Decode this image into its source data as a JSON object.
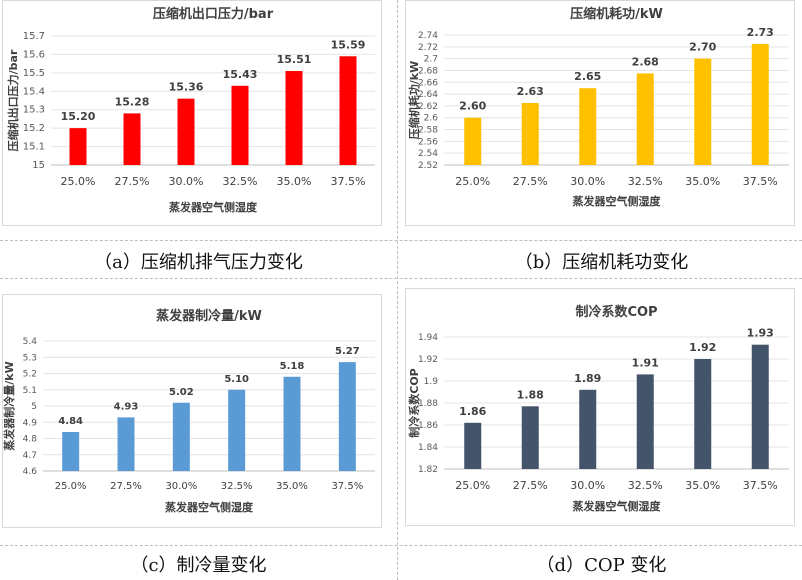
{
  "captions": {
    "a": "（a）压缩机排气压力变化",
    "b": "（b）压缩机耗功变化",
    "c": "（c）制冷量变化",
    "d": "（d）COP 变化"
  },
  "chart_data": [
    {
      "type": "bar",
      "title": "压缩机出口压力/bar",
      "xlabel": "蒸发器空气侧湿度",
      "ylabel": "压缩机出口压力/bar",
      "categories": [
        "25.0%",
        "27.5%",
        "30.0%",
        "32.5%",
        "35.0%",
        "37.5%"
      ],
      "values": [
        15.2,
        15.28,
        15.36,
        15.43,
        15.51,
        15.59
      ],
      "value_labels": [
        "15.20",
        "15.28",
        "15.36",
        "15.43",
        "15.51",
        "15.59"
      ],
      "ylim": [
        15,
        15.7
      ],
      "yticks": [
        "15",
        "15.1",
        "15.2",
        "15.3",
        "15.4",
        "15.5",
        "15.6",
        "15.7"
      ],
      "color": "#FF0000",
      "grid": true
    },
    {
      "type": "bar",
      "title": "压缩机耗功/kW",
      "xlabel": "蒸发器空气侧湿度",
      "ylabel": "压缩机耗功/kW",
      "categories": [
        "25.0%",
        "27.5%",
        "30.0%",
        "32.5%",
        "35.0%",
        "37.5%"
      ],
      "values": [
        2.6,
        2.625,
        2.65,
        2.675,
        2.7,
        2.725
      ],
      "value_labels": [
        "2.60",
        "2.63",
        "2.65",
        "2.68",
        "2.70",
        "2.73"
      ],
      "ylim": [
        2.52,
        2.74
      ],
      "yticks": [
        "2.52",
        "2.54",
        "2.56",
        "2.58",
        "2.6",
        "2.62",
        "2.64",
        "2.66",
        "2.68",
        "2.7",
        "2.72",
        "2.74"
      ],
      "color": "#FFC000",
      "grid": true
    },
    {
      "type": "bar",
      "title": "蒸发器制冷量/kW",
      "xlabel": "蒸发器空气侧湿度",
      "ylabel": "蒸发器制冷量/kW",
      "categories": [
        "25.0%",
        "27.5%",
        "30.0%",
        "32.5%",
        "35.0%",
        "37.5%"
      ],
      "values": [
        4.84,
        4.93,
        5.02,
        5.1,
        5.18,
        5.27
      ],
      "value_labels": [
        "4.84",
        "4.93",
        "5.02",
        "5.10",
        "5.18",
        "5.27"
      ],
      "ylim": [
        4.6,
        5.4
      ],
      "yticks": [
        "4.6",
        "4.7",
        "4.8",
        "4.9",
        "5",
        "5.1",
        "5.2",
        "5.3",
        "5.4"
      ],
      "color": "#5B9BD5",
      "grid": true
    },
    {
      "type": "bar",
      "title": "制冷系数COP",
      "xlabel": "蒸发器空气侧湿度",
      "ylabel": "制冷系数COP",
      "categories": [
        "25.0%",
        "27.5%",
        "30.0%",
        "32.5%",
        "35.0%",
        "37.5%"
      ],
      "values": [
        1.862,
        1.877,
        1.892,
        1.906,
        1.92,
        1.933
      ],
      "value_labels": [
        "1.86",
        "1.88",
        "1.89",
        "1.91",
        "1.92",
        "1.93"
      ],
      "ylim": [
        1.82,
        1.94
      ],
      "yticks": [
        "1.82",
        "1.84",
        "1.86",
        "1.88",
        "1.9",
        "1.92",
        "1.94"
      ],
      "color": "#44546A",
      "grid": true
    }
  ]
}
